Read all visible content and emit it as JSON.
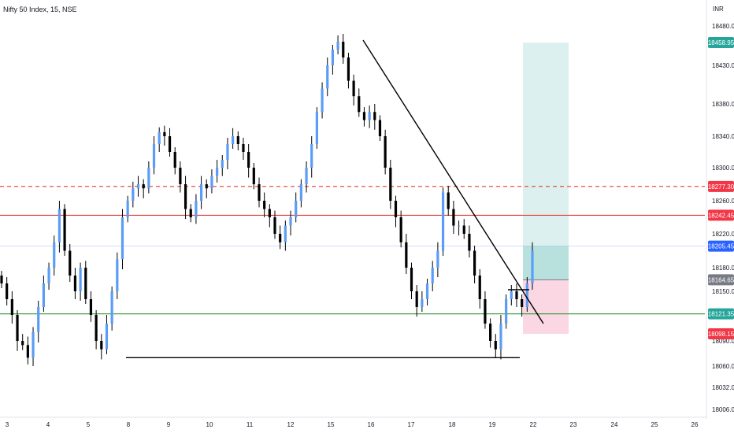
{
  "header": {
    "title": "Nifty 50 Index, 15, NSE",
    "currency": "INR"
  },
  "colors": {
    "candle": "#5b9cf6",
    "wick": "#000000",
    "resistance_red": "#e53935",
    "support_green": "#43a047",
    "target_zone": "#b2dfdb",
    "stop_zone": "#f8bbd0",
    "badge_green": "#26a69a",
    "badge_red": "#f23645",
    "badge_blue": "#2962ff",
    "badge_grey": "#787b86",
    "trendline": "#000000"
  },
  "chart_data": {
    "type": "candlestick",
    "title": "Nifty 50 Index, 15, NSE",
    "ylim": [
      18000,
      18500
    ],
    "y_ticks": [
      "18480.00",
      "18430.00",
      "18380.00",
      "18340.00",
      "18300.00",
      "18260.00",
      "18220.00",
      "18180.00",
      "18150.00",
      "18120.00",
      "18090.00",
      "18060.00",
      "18032.00",
      "18006.00"
    ],
    "y_tick_values": [
      18480,
      18430,
      18380,
      18340,
      18300,
      18260,
      18220,
      18180,
      18150,
      18120,
      18090,
      18060,
      18032,
      18006
    ],
    "x_ticks": [
      "3",
      "4",
      "5",
      "8",
      "9",
      "10",
      "11",
      "12",
      "15",
      "16",
      "17",
      "18",
      "19",
      "22",
      "23",
      "24",
      "25",
      "26"
    ],
    "price_labels": [
      {
        "label": "18458.95",
        "value": 18458.95,
        "color": "badge_green"
      },
      {
        "label": "18277.30",
        "value": 18277.3,
        "color": "badge_red"
      },
      {
        "label": "18242.45",
        "value": 18242.45,
        "color": "badge_red"
      },
      {
        "label": "18205.45",
        "value": 18205.45,
        "color": "badge_blue"
      },
      {
        "label": "18164.65",
        "value": 18164.65,
        "color": "badge_grey"
      },
      {
        "label": "18121.35",
        "value": 18121.35,
        "color": "badge_green"
      },
      {
        "label": "18098.15",
        "value": 18098.15,
        "color": "badge_red"
      }
    ],
    "horizontal_levels": [
      {
        "name": "dashed-resistance",
        "value": 18277.3,
        "style": "dashed",
        "color": "resistance_red"
      },
      {
        "name": "resistance",
        "value": 18242.45,
        "style": "solid",
        "color": "resistance_red"
      },
      {
        "name": "support",
        "value": 18121.35,
        "style": "solid",
        "color": "support_green"
      }
    ],
    "position": {
      "entry": 18164.65,
      "target": 18458.95,
      "stop": 18098.15,
      "current": 18205.45
    },
    "closes": [
      18160,
      18140,
      18120,
      18090,
      18085,
      18070,
      18100,
      18130,
      18160,
      18180,
      18210,
      18250,
      18200,
      18170,
      18150,
      18180,
      18140,
      18120,
      18090,
      18080,
      18110,
      18150,
      18190,
      18240,
      18260,
      18275,
      18280,
      18275,
      18300,
      18330,
      18345,
      18340,
      18320,
      18300,
      18280,
      18250,
      18240,
      18260,
      18280,
      18275,
      18290,
      18300,
      18310,
      18330,
      18340,
      18330,
      18320,
      18300,
      18280,
      18260,
      18250,
      18240,
      18220,
      18210,
      18230,
      18240,
      18260,
      18280,
      18300,
      18330,
      18370,
      18400,
      18430,
      18450,
      18460,
      18440,
      18410,
      18390,
      18370,
      18360,
      18370,
      18360,
      18340,
      18300,
      18260,
      18240,
      18210,
      18180,
      18150,
      18130,
      18140,
      18160,
      18180,
      18200,
      18270,
      18250,
      18230,
      18230,
      18220,
      18200,
      18170,
      18140,
      18110,
      18090,
      18080,
      18110,
      18140,
      18150,
      18140,
      18130,
      18160,
      18200
    ],
    "trendlines": [
      {
        "name": "descending-trendline",
        "from": {
          "x_tick": "15",
          "value": 18462
        },
        "to": {
          "x_tick": "22",
          "value": 18110
        }
      },
      {
        "name": "support-base-line",
        "from": {
          "x_tick": "8",
          "value": 18070
        },
        "to": {
          "x_tick": "19",
          "value": 18070
        }
      },
      {
        "name": "breakout-box-line",
        "from": {
          "x_tick": "19",
          "value": 18152
        },
        "to": {
          "x_tick": "22",
          "value": 18152
        }
      }
    ]
  }
}
